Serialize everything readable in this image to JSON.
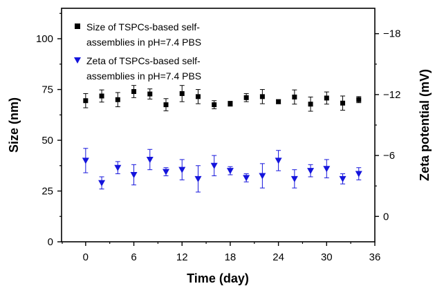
{
  "chart_data": {
    "type": "scatter",
    "xlabel": "Time (day)",
    "ylabel_left": "Size (nm)",
    "ylabel_right": "Zeta potential (mV)",
    "x_ticks": [
      "0",
      "6",
      "12",
      "18",
      "24",
      "30",
      "36"
    ],
    "x_tick_values": [
      0,
      6,
      12,
      18,
      24,
      30,
      36
    ],
    "xlim": [
      -3,
      36
    ],
    "y_left_ticks": [
      "0",
      "25",
      "50",
      "75",
      "100"
    ],
    "y_left_tick_values": [
      0,
      25,
      50,
      75,
      100
    ],
    "ylim_left": [
      0,
      115
    ],
    "y_right_ticks": [
      "0",
      "−6",
      "−12",
      "−18"
    ],
    "y_right_tick_values": [
      0,
      -6,
      -12,
      -18
    ],
    "ylim_right": [
      2.5,
      -20.5
    ],
    "legend_position": "top-left",
    "series": [
      {
        "name": "Size of TSPCs-based self-assemblies in pH=7.4 PBS",
        "legend_lines": [
          "Size of TSPCs-based self-",
          "assemblies in pH=7.4 PBS"
        ],
        "axis": "left",
        "marker": "square",
        "color": "#000000",
        "x": [
          0,
          2,
          4,
          6,
          8,
          10,
          12,
          14,
          16,
          18,
          20,
          22,
          24,
          26,
          28,
          30,
          32,
          34
        ],
        "y": [
          69.5,
          71.8,
          70,
          74,
          72.8,
          67.5,
          73,
          71.5,
          67.5,
          68,
          71,
          71.5,
          69,
          71.3,
          67.8,
          70.8,
          68.3,
          70
        ],
        "error": [
          3.5,
          3,
          3.5,
          3,
          2.5,
          3,
          4,
          3.5,
          2,
          1.2,
          2,
          3.5,
          1,
          3.5,
          3.5,
          3,
          3.5,
          1.5
        ]
      },
      {
        "name": "Zeta of TSPCs-based self-assemblies in pH=7.4 PBS",
        "legend_lines": [
          "Zeta of TSPCs-based self-",
          "assemblies in pH=7.4 PBS"
        ],
        "axis": "right",
        "marker": "triangle-down",
        "color": "#1414dc",
        "x": [
          0,
          2,
          4,
          6,
          8,
          10,
          12,
          14,
          16,
          18,
          20,
          22,
          24,
          26,
          28,
          30,
          32,
          34
        ],
        "y": [
          -5.5,
          -3.3,
          -4.8,
          -4.1,
          -5.6,
          -4.4,
          -4.6,
          -3.7,
          -5,
          -4.5,
          -3.8,
          -4,
          -5.5,
          -3.7,
          -4.5,
          -4.7,
          -3.7,
          -4.2
        ],
        "error": [
          1.2,
          0.6,
          0.6,
          1,
          1,
          0.4,
          1,
          1.3,
          1,
          0.4,
          0.4,
          1.2,
          1,
          0.9,
          0.6,
          0.9,
          0.5,
          0.6
        ]
      }
    ]
  }
}
